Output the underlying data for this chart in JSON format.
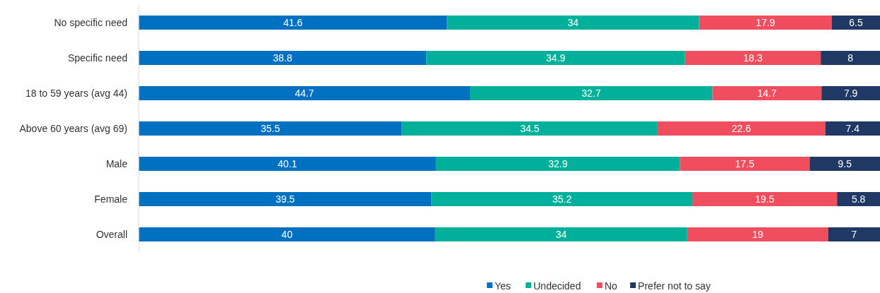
{
  "chart_data": {
    "type": "bar",
    "orientation": "horizontal",
    "stacked": true,
    "data_labels": true,
    "legend": "bottom",
    "categories": [
      "No specific need",
      "Specific need",
      "18 to 59 years (avg 44)",
      "Above 60 years (avg 69)",
      "Male",
      "Female",
      "Overall"
    ],
    "series": [
      {
        "name": "Yes",
        "color": "#0070c0",
        "values": [
          41.6,
          38.8,
          44.7,
          35.5,
          40.1,
          39.5,
          40
        ]
      },
      {
        "name": "Undecided",
        "color": "#00b09a",
        "values": [
          34,
          34.9,
          32.7,
          34.5,
          32.9,
          35.2,
          34
        ]
      },
      {
        "name": "No",
        "color": "#f04e5e",
        "values": [
          17.9,
          18.3,
          14.7,
          22.6,
          17.5,
          19.5,
          19
        ]
      },
      {
        "name": "Prefer not to say",
        "color": "#1f3864",
        "values": [
          6.5,
          8,
          7.9,
          7.4,
          9.5,
          5.8,
          7
        ]
      }
    ]
  }
}
